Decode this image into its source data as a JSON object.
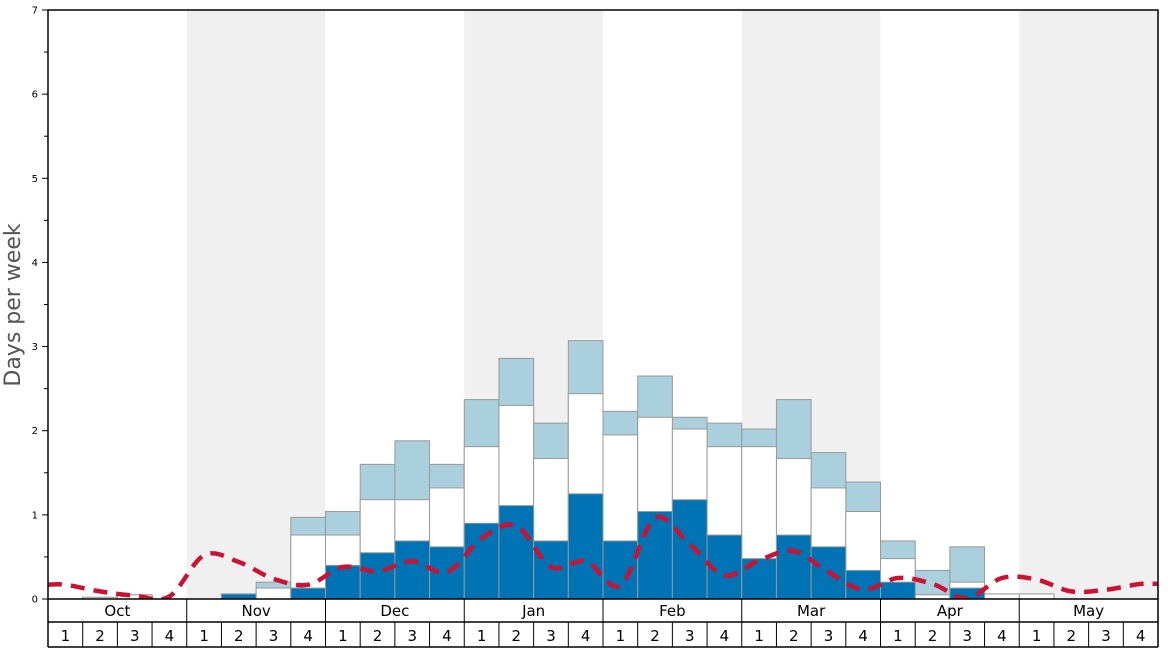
{
  "chart_data": {
    "type": "bar",
    "ylabel": "Days per week",
    "ylim": [
      0,
      7
    ],
    "yticks": [
      "0",
      "1",
      "2",
      "3",
      "4",
      "5",
      "6",
      "7"
    ],
    "months": [
      "Oct",
      "Nov",
      "Dec",
      "Jan",
      "Feb",
      "Mar",
      "Apr",
      "May"
    ],
    "week_labels": [
      "1",
      "2",
      "3",
      "4"
    ],
    "colors": {
      "dark": "#0073b5",
      "white": "#ffffff",
      "light": "#a9d0dc",
      "line": "#cc1133",
      "band": "#f0f0f0"
    },
    "series": [
      {
        "values": [
          0,
          0,
          0,
          0,
          0,
          0.06,
          0,
          0.13,
          0.4,
          0.55,
          0.69,
          0.62,
          0.9,
          1.11,
          0.69,
          1.25,
          0.69,
          1.04,
          1.18,
          0.76,
          0.48,
          0.76,
          0.62,
          0.34,
          0.2,
          0,
          0.13,
          0,
          0,
          0,
          0,
          0
        ]
      },
      {
        "values": [
          0,
          0.02,
          0.05,
          0,
          0,
          0.06,
          0.13,
          0.76,
          0.76,
          1.18,
          1.18,
          1.32,
          1.81,
          2.3,
          1.67,
          2.44,
          1.95,
          2.16,
          2.02,
          1.81,
          1.81,
          1.67,
          1.32,
          1.04,
          0.48,
          0.05,
          0.2,
          0.06,
          0.06,
          0,
          0,
          0
        ]
      },
      {
        "values": [
          0,
          0.02,
          0.05,
          0,
          0,
          0.06,
          0.2,
          0.97,
          1.04,
          1.6,
          1.88,
          1.6,
          2.37,
          2.86,
          2.09,
          3.07,
          2.23,
          2.65,
          2.16,
          2.09,
          2.02,
          2.37,
          1.74,
          1.39,
          0.69,
          0.34,
          0.62,
          0.06,
          0.06,
          0,
          0,
          0
        ]
      },
      {
        "values": [
          0.17,
          0.09,
          0.04,
          0.03,
          0.52,
          0.44,
          0.24,
          0.17,
          0.38,
          0.33,
          0.45,
          0.32,
          0.72,
          0.87,
          0.38,
          0.45,
          0.16,
          0.96,
          0.65,
          0.28,
          0.46,
          0.57,
          0.32,
          0.11,
          0.25,
          0.18,
          0.01,
          0.25,
          0.23,
          0.09,
          0.11,
          0.18
        ]
      }
    ]
  }
}
